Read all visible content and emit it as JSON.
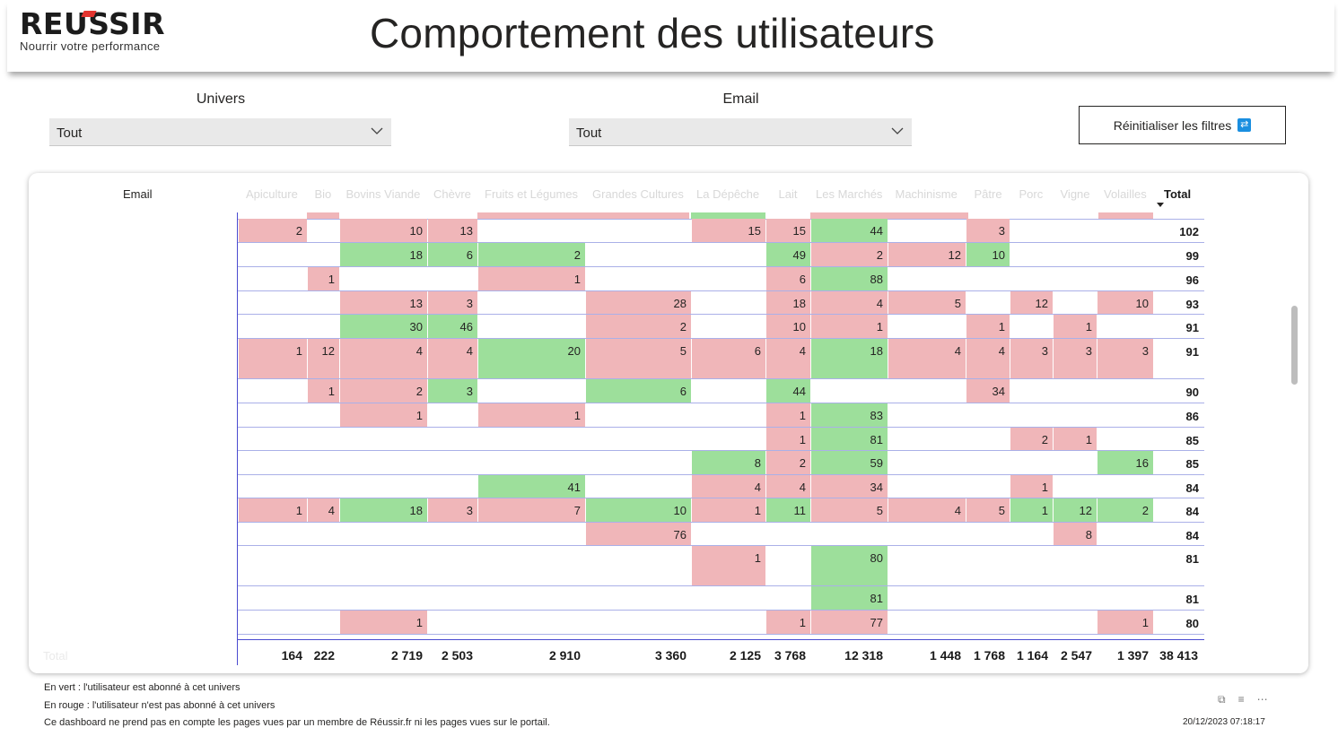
{
  "header": {
    "logo_word": "REUSSIR",
    "logo_tagline": "Nourrir votre performance",
    "title": "Comportement des utilisateurs"
  },
  "filters": {
    "univers": {
      "label": "Univers",
      "value": "Tout"
    },
    "email": {
      "label": "Email",
      "value": "Tout"
    },
    "reset_label": "Réinitialiser les filtres"
  },
  "matrix": {
    "row_header": "Email",
    "columns": [
      "Apiculture",
      "Bio",
      "Bovins Viande",
      "Chèvre",
      "Fruits et Légumes",
      "Grandes Cultures",
      "La Dépêche",
      "Lait",
      "Les Marchés",
      "Machinisme",
      "Pâtre",
      "Porc",
      "Vigne",
      "Volailles"
    ],
    "total_header": "Total",
    "rows": [
      {
        "total": "102",
        "cells": [
          [
            "2",
            "r"
          ],
          [
            "",
            ""
          ],
          [
            "10",
            "r"
          ],
          [
            "13",
            "r"
          ],
          [
            "",
            ""
          ],
          [
            "",
            ""
          ],
          [
            "15",
            "r"
          ],
          [
            "15",
            "r"
          ],
          [
            "44",
            "g"
          ],
          [
            "",
            ""
          ],
          [
            "3",
            "r"
          ],
          [
            "",
            ""
          ],
          [
            "",
            ""
          ],
          [
            "",
            ""
          ]
        ]
      },
      {
        "total": "99",
        "cells": [
          [
            "",
            ""
          ],
          [
            "",
            ""
          ],
          [
            "18",
            "g"
          ],
          [
            "6",
            "g"
          ],
          [
            "2",
            "g"
          ],
          [
            "",
            ""
          ],
          [
            "",
            ""
          ],
          [
            "49",
            "g"
          ],
          [
            "2",
            "r"
          ],
          [
            "12",
            "r"
          ],
          [
            "10",
            "g"
          ],
          [
            "",
            ""
          ],
          [
            "",
            ""
          ],
          [
            "",
            ""
          ]
        ]
      },
      {
        "total": "96",
        "cells": [
          [
            "",
            ""
          ],
          [
            "1",
            "r"
          ],
          [
            "",
            ""
          ],
          [
            "",
            ""
          ],
          [
            "1",
            "r"
          ],
          [
            "",
            ""
          ],
          [
            "",
            ""
          ],
          [
            "6",
            "r"
          ],
          [
            "88",
            "g"
          ],
          [
            "",
            ""
          ],
          [
            "",
            ""
          ],
          [
            "",
            ""
          ],
          [
            "",
            ""
          ],
          [
            "",
            ""
          ]
        ]
      },
      {
        "total": "93",
        "cells": [
          [
            "",
            ""
          ],
          [
            "",
            ""
          ],
          [
            "13",
            "r"
          ],
          [
            "3",
            "r"
          ],
          [
            "",
            ""
          ],
          [
            "28",
            "r"
          ],
          [
            "",
            ""
          ],
          [
            "18",
            "r"
          ],
          [
            "4",
            "r"
          ],
          [
            "5",
            "r"
          ],
          [
            "",
            ""
          ],
          [
            "12",
            "r"
          ],
          [
            "",
            ""
          ],
          [
            "10",
            "r"
          ]
        ]
      },
      {
        "total": "91",
        "cells": [
          [
            "",
            ""
          ],
          [
            "",
            ""
          ],
          [
            "30",
            "g"
          ],
          [
            "46",
            "g"
          ],
          [
            "",
            ""
          ],
          [
            "2",
            "r"
          ],
          [
            "",
            ""
          ],
          [
            "10",
            "r"
          ],
          [
            "1",
            "r"
          ],
          [
            "",
            ""
          ],
          [
            "1",
            "r"
          ],
          [
            "",
            ""
          ],
          [
            "1",
            "r"
          ],
          [
            "",
            ""
          ]
        ]
      },
      {
        "total": "91",
        "tall": true,
        "cells": [
          [
            "1",
            "r"
          ],
          [
            "12",
            "r"
          ],
          [
            "4",
            "r"
          ],
          [
            "4",
            "r"
          ],
          [
            "20",
            "g"
          ],
          [
            "5",
            "r"
          ],
          [
            "6",
            "r"
          ],
          [
            "4",
            "r"
          ],
          [
            "18",
            "g"
          ],
          [
            "4",
            "r"
          ],
          [
            "4",
            "r"
          ],
          [
            "3",
            "r"
          ],
          [
            "3",
            "r"
          ],
          [
            "3",
            "r"
          ]
        ]
      },
      {
        "total": "90",
        "cells": [
          [
            "",
            ""
          ],
          [
            "1",
            "r"
          ],
          [
            "2",
            "r"
          ],
          [
            "3",
            "g"
          ],
          [
            "",
            ""
          ],
          [
            "6",
            "g"
          ],
          [
            "",
            ""
          ],
          [
            "44",
            "g"
          ],
          [
            "",
            ""
          ],
          [
            "",
            ""
          ],
          [
            "34",
            "r"
          ],
          [
            "",
            ""
          ],
          [
            "",
            ""
          ],
          [
            "",
            ""
          ]
        ]
      },
      {
        "total": "86",
        "cells": [
          [
            "",
            ""
          ],
          [
            "",
            ""
          ],
          [
            "1",
            "r"
          ],
          [
            "",
            ""
          ],
          [
            "1",
            "r"
          ],
          [
            "",
            ""
          ],
          [
            "",
            ""
          ],
          [
            "1",
            "r"
          ],
          [
            "83",
            "g"
          ],
          [
            "",
            ""
          ],
          [
            "",
            ""
          ],
          [
            "",
            ""
          ],
          [
            "",
            ""
          ],
          [
            "",
            ""
          ]
        ]
      },
      {
        "total": "85",
        "cells": [
          [
            "",
            ""
          ],
          [
            "",
            ""
          ],
          [
            "",
            ""
          ],
          [
            "",
            ""
          ],
          [
            "",
            ""
          ],
          [
            "",
            ""
          ],
          [
            "",
            ""
          ],
          [
            "1",
            "r"
          ],
          [
            "81",
            "g"
          ],
          [
            "",
            ""
          ],
          [
            "",
            ""
          ],
          [
            "2",
            "r"
          ],
          [
            "1",
            "r"
          ],
          [
            "",
            ""
          ]
        ]
      },
      {
        "total": "85",
        "cells": [
          [
            "",
            ""
          ],
          [
            "",
            ""
          ],
          [
            "",
            ""
          ],
          [
            "",
            ""
          ],
          [
            "",
            ""
          ],
          [
            "",
            ""
          ],
          [
            "8",
            "g"
          ],
          [
            "2",
            "r"
          ],
          [
            "59",
            "g"
          ],
          [
            "",
            ""
          ],
          [
            "",
            ""
          ],
          [
            "",
            ""
          ],
          [
            "",
            ""
          ],
          [
            "16",
            "g"
          ]
        ]
      },
      {
        "total": "84",
        "cells": [
          [
            "",
            ""
          ],
          [
            "",
            ""
          ],
          [
            "",
            ""
          ],
          [
            "",
            ""
          ],
          [
            "41",
            "g"
          ],
          [
            "",
            ""
          ],
          [
            "4",
            "r"
          ],
          [
            "4",
            "r"
          ],
          [
            "34",
            "r"
          ],
          [
            "",
            ""
          ],
          [
            "",
            ""
          ],
          [
            "1",
            "r"
          ],
          [
            "",
            ""
          ],
          [
            "",
            ""
          ]
        ]
      },
      {
        "total": "84",
        "cells": [
          [
            "1",
            "r"
          ],
          [
            "4",
            "r"
          ],
          [
            "18",
            "g"
          ],
          [
            "3",
            "r"
          ],
          [
            "7",
            "r"
          ],
          [
            "10",
            "g"
          ],
          [
            "1",
            "r"
          ],
          [
            "11",
            "g"
          ],
          [
            "5",
            "r"
          ],
          [
            "4",
            "r"
          ],
          [
            "5",
            "r"
          ],
          [
            "1",
            "g"
          ],
          [
            "12",
            "g"
          ],
          [
            "2",
            "g"
          ]
        ]
      },
      {
        "total": "84",
        "cells": [
          [
            "",
            ""
          ],
          [
            "",
            ""
          ],
          [
            "",
            ""
          ],
          [
            "",
            ""
          ],
          [
            "",
            ""
          ],
          [
            "76",
            "r"
          ],
          [
            "",
            ""
          ],
          [
            "",
            ""
          ],
          [
            "",
            ""
          ],
          [
            "",
            ""
          ],
          [
            "",
            ""
          ],
          [
            "",
            ""
          ],
          [
            "8",
            "r"
          ],
          [
            "",
            ""
          ]
        ]
      },
      {
        "total": "81",
        "tall": true,
        "cells": [
          [
            "",
            ""
          ],
          [
            "",
            ""
          ],
          [
            "",
            ""
          ],
          [
            "",
            ""
          ],
          [
            "",
            ""
          ],
          [
            "",
            ""
          ],
          [
            "1",
            "r"
          ],
          [
            "",
            ""
          ],
          [
            "80",
            "g"
          ],
          [
            "",
            ""
          ],
          [
            "",
            ""
          ],
          [
            "",
            ""
          ],
          [
            "",
            ""
          ],
          [
            "",
            ""
          ]
        ]
      },
      {
        "total": "81",
        "cells": [
          [
            "",
            ""
          ],
          [
            "",
            ""
          ],
          [
            "",
            ""
          ],
          [
            "",
            ""
          ],
          [
            "",
            ""
          ],
          [
            "",
            ""
          ],
          [
            "",
            ""
          ],
          [
            "",
            ""
          ],
          [
            "81",
            "g"
          ],
          [
            "",
            ""
          ],
          [
            "",
            ""
          ],
          [
            "",
            ""
          ],
          [
            "",
            ""
          ],
          [
            "",
            ""
          ]
        ]
      },
      {
        "total": "80",
        "cells": [
          [
            "",
            ""
          ],
          [
            "",
            ""
          ],
          [
            "1",
            "r"
          ],
          [
            "",
            ""
          ],
          [
            "",
            ""
          ],
          [
            "",
            ""
          ],
          [
            "",
            ""
          ],
          [
            "1",
            "r"
          ],
          [
            "77",
            "r"
          ],
          [
            "",
            ""
          ],
          [
            "",
            ""
          ],
          [
            "",
            ""
          ],
          [
            "",
            ""
          ],
          [
            "1",
            "r"
          ]
        ]
      }
    ],
    "totals_label": "Total",
    "totals": [
      "164",
      "222",
      "2 719",
      "2 503",
      "2 910",
      "3 360",
      "2 125",
      "3 768",
      "12 318",
      "1 448",
      "1 768",
      "1 164",
      "2 547",
      "1 397"
    ],
    "grand_total": "38 413"
  },
  "footnotes": {
    "green": "En vert : l'utilisateur est abonné à cet univers",
    "red": "En rouge : l'utilisateur n'est pas abonné à cet univers",
    "note": "Ce dashboard ne prend pas en compte les pages vues par un membre de Réussir.fr ni les pages vues sur le portail."
  },
  "timestamp": "20/12/2023 07:18:17",
  "colors": {
    "subscribed": "#9ddf9b",
    "not_subscribed": "#f0b6b9",
    "accent": "#e3342f",
    "reset_icon": "#1a8fe0"
  }
}
